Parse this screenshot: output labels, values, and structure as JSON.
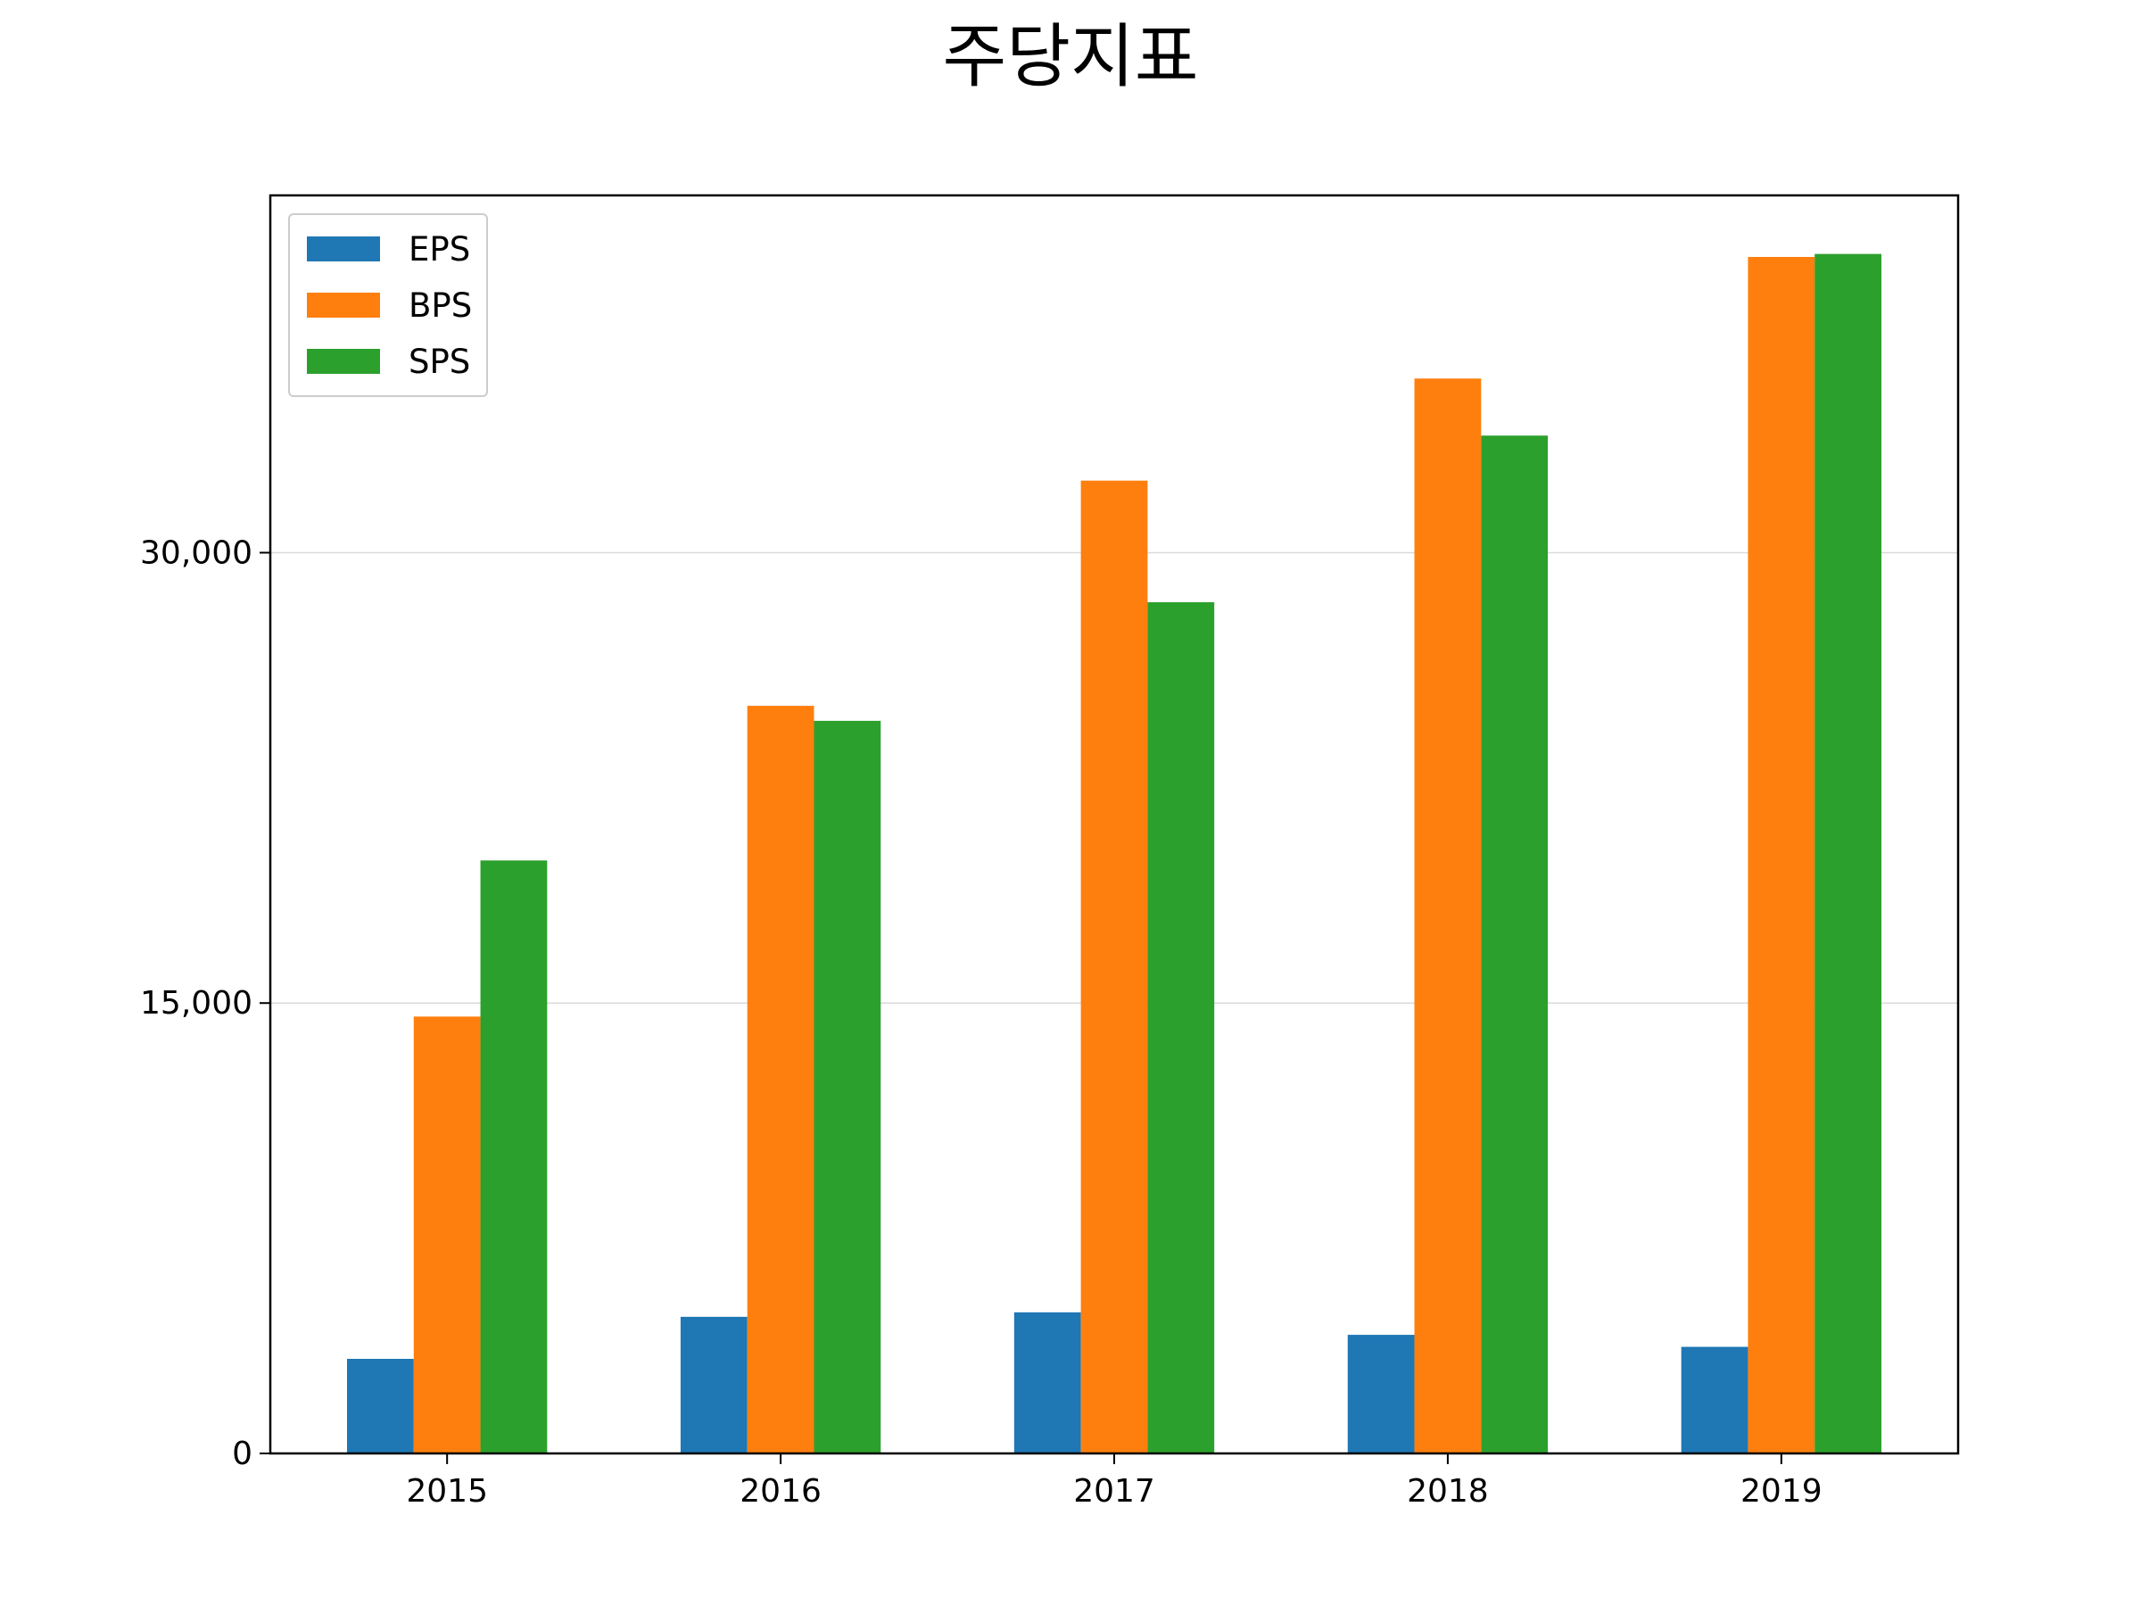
{
  "chart_data": {
    "type": "bar",
    "title": "주당지표",
    "xlabel": "",
    "ylabel": "",
    "categories": [
      "2015",
      "2016",
      "2017",
      "2018",
      "2019"
    ],
    "series": [
      {
        "name": "EPS",
        "color": "#1f77b4",
        "values": [
          3150,
          4550,
          4700,
          3950,
          3550
        ]
      },
      {
        "name": "BPS",
        "color": "#ff7f0e",
        "values": [
          14550,
          24900,
          32400,
          35800,
          39850
        ]
      },
      {
        "name": "SPS",
        "color": "#2ca02c",
        "values": [
          19750,
          24400,
          28350,
          33900,
          39950
        ]
      }
    ],
    "ylim": [
      0,
      41900
    ],
    "yticks": [
      0,
      15000,
      30000
    ],
    "ytick_labels": [
      "0",
      "15,000",
      "30,000"
    ],
    "grid": "y",
    "legend_position": "upper-left"
  }
}
